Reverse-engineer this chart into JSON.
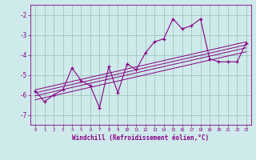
{
  "x_data": [
    0,
    1,
    2,
    3,
    4,
    5,
    6,
    7,
    8,
    9,
    10,
    11,
    12,
    13,
    14,
    15,
    16,
    17,
    18,
    19,
    20,
    21,
    22,
    23
  ],
  "y_main": [
    -5.8,
    -6.35,
    -6.0,
    -5.75,
    -4.65,
    -5.3,
    -5.55,
    -6.65,
    -4.6,
    -5.9,
    -4.45,
    -4.75,
    -3.9,
    -3.35,
    -3.2,
    -2.2,
    -2.7,
    -2.55,
    -2.2,
    -4.2,
    -4.35,
    -4.35,
    -4.35,
    -3.4
  ],
  "line1_x": [
    0,
    23
  ],
  "line1_y": [
    -5.75,
    -3.35
  ],
  "line2_x": [
    0,
    23
  ],
  "line2_y": [
    -5.9,
    -3.5
  ],
  "line3_x": [
    0,
    23
  ],
  "line3_y": [
    -6.05,
    -3.65
  ],
  "line4_x": [
    0,
    23
  ],
  "line4_y": [
    -6.25,
    -3.85
  ],
  "color": "#880088",
  "bg_color": "#ceeaea",
  "grid_color": "#99bbbb",
  "xlabel": "Windchill (Refroidissement éolien,°C)",
  "xlim": [
    -0.5,
    23.5
  ],
  "ylim": [
    -7.5,
    -1.5
  ],
  "yticks": [
    -7,
    -6,
    -5,
    -4,
    -3,
    -2
  ],
  "xticks": [
    0,
    1,
    2,
    3,
    4,
    5,
    6,
    7,
    8,
    9,
    10,
    11,
    12,
    13,
    14,
    15,
    16,
    17,
    18,
    19,
    20,
    21,
    22,
    23
  ]
}
